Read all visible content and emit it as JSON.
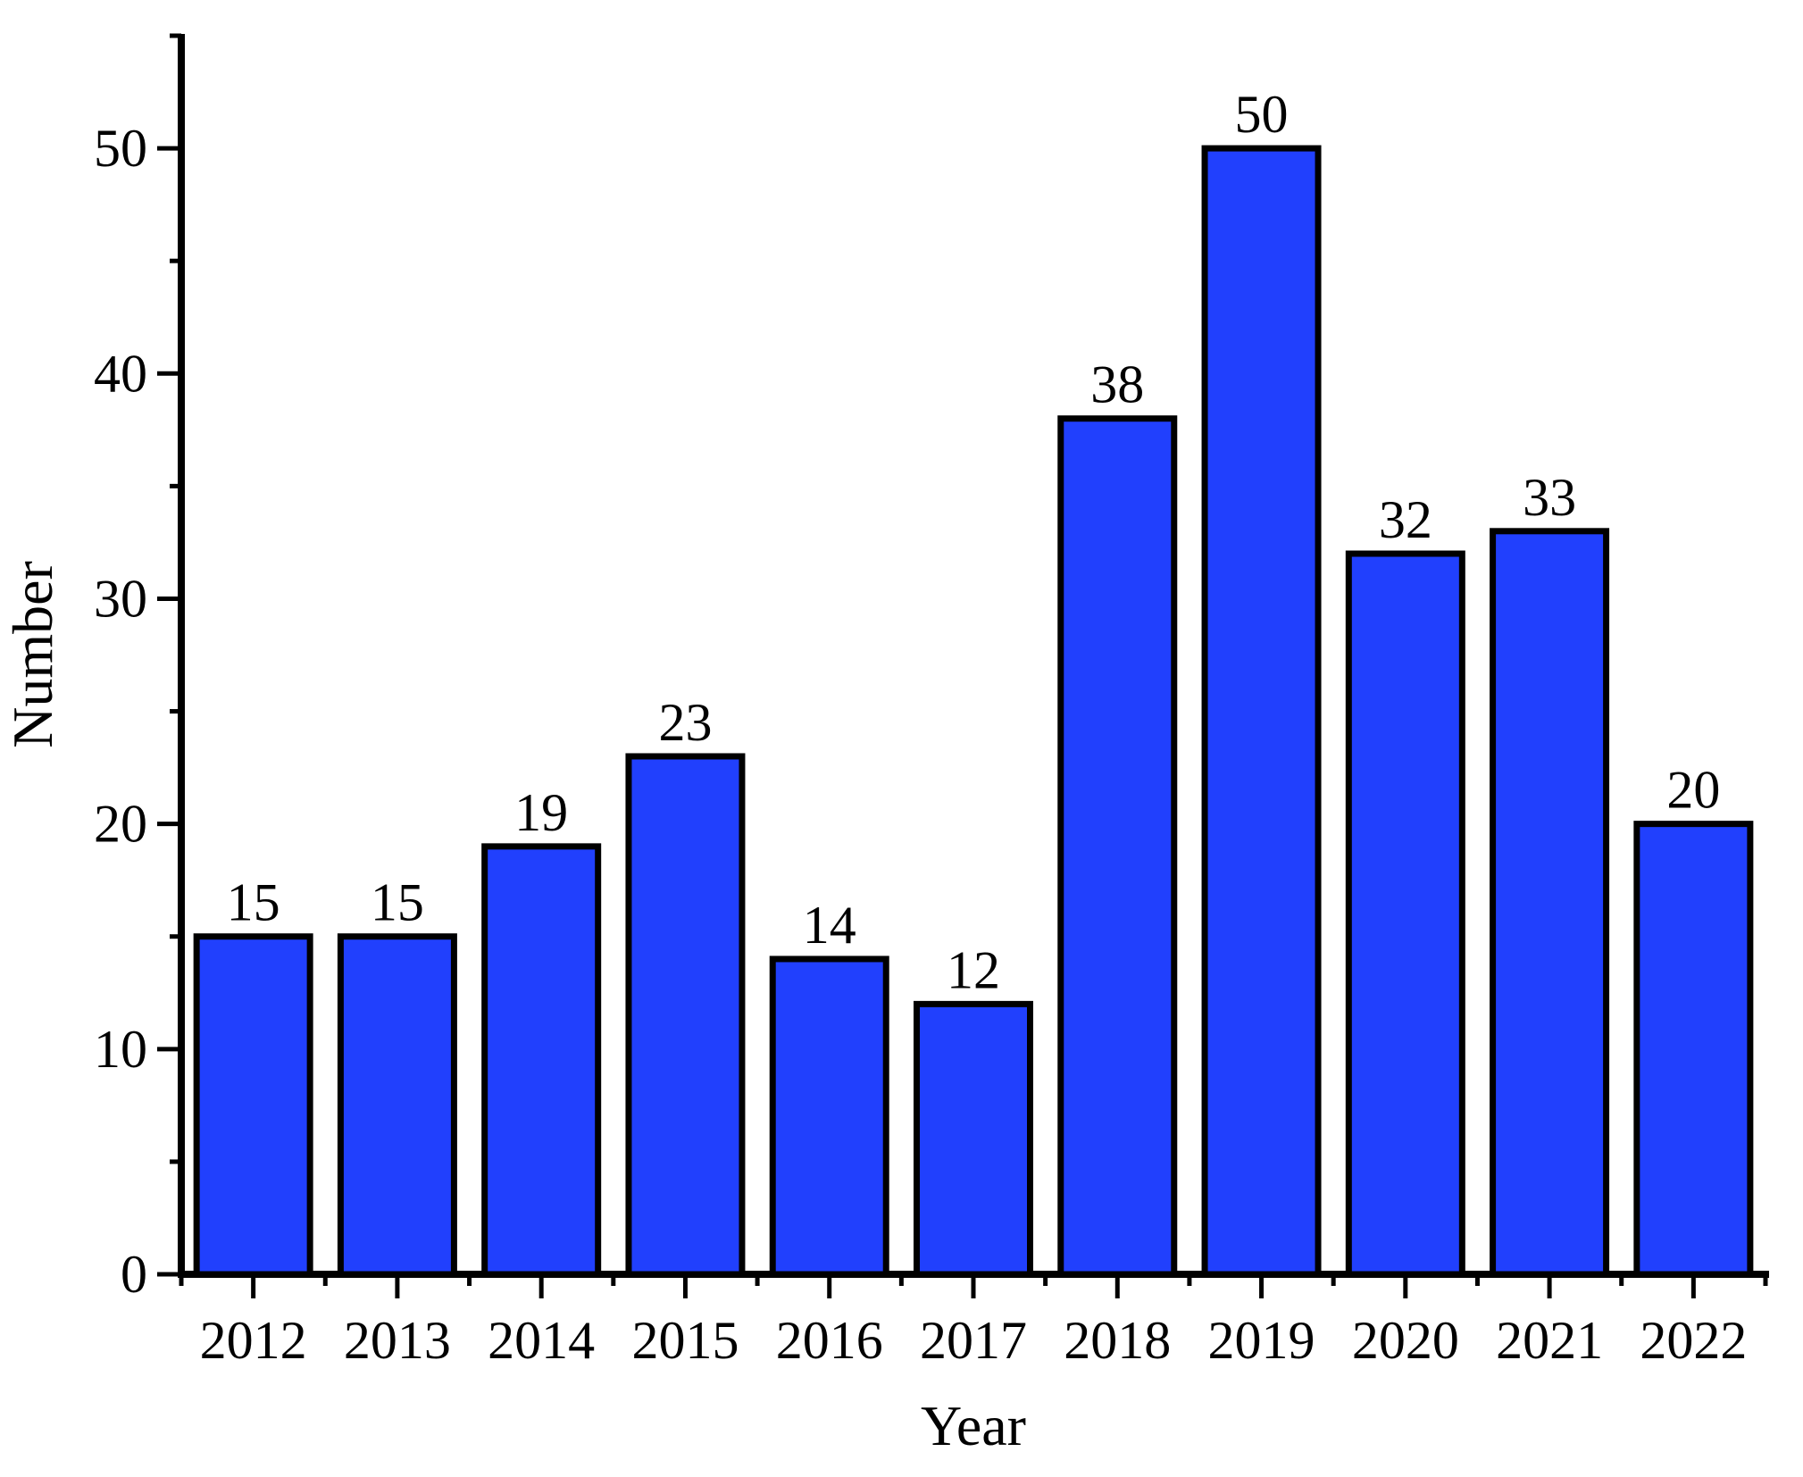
{
  "chart_data": {
    "type": "bar",
    "title": "",
    "xlabel": "Year",
    "ylabel": "Number",
    "categories": [
      "2012",
      "2013",
      "2014",
      "2015",
      "2016",
      "2017",
      "2018",
      "2019",
      "2020",
      "2021",
      "2022"
    ],
    "values": [
      15,
      15,
      19,
      23,
      14,
      12,
      38,
      50,
      32,
      33,
      20
    ],
    "value_labels_shown": true,
    "ylim": [
      0,
      55
    ],
    "yticks_major": [
      0,
      10,
      20,
      30,
      40,
      50
    ],
    "yticks_minor": [
      5,
      15,
      25,
      35,
      45,
      55
    ],
    "grid": false,
    "legend_position": "none",
    "colors": {
      "bar_fill": "#2140fd",
      "bar_border": "#000000",
      "axis": "#000000",
      "text": "#000000",
      "background": "#ffffff"
    }
  }
}
